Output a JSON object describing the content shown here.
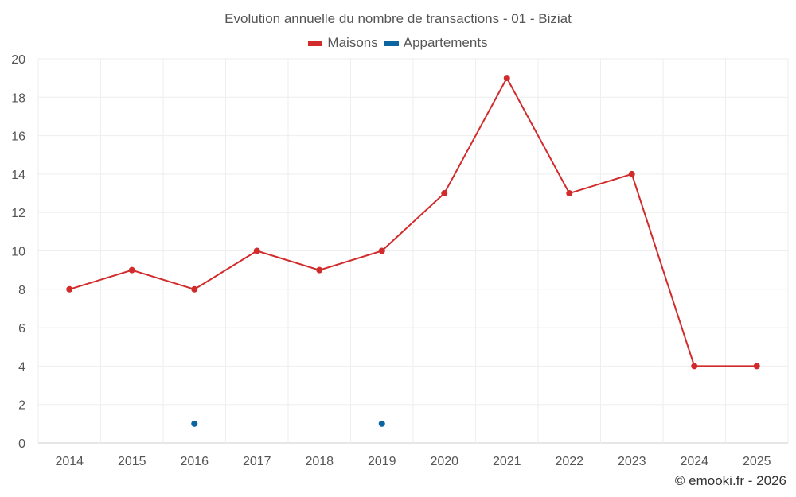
{
  "chart_data": {
    "type": "line",
    "title": "Evolution annuelle du nombre de transactions - 01 - Biziat",
    "categories": [
      "2014",
      "2015",
      "2016",
      "2017",
      "2018",
      "2019",
      "2020",
      "2021",
      "2022",
      "2023",
      "2024",
      "2025"
    ],
    "series": [
      {
        "name": "Maisons",
        "color": "#d22b2b",
        "values": [
          8,
          9,
          8,
          10,
          9,
          10,
          13,
          19,
          13,
          14,
          4,
          4
        ]
      },
      {
        "name": "Appartements",
        "color": "#0b65a0",
        "values": [
          null,
          null,
          1,
          null,
          null,
          1,
          null,
          null,
          null,
          null,
          null,
          null
        ]
      }
    ],
    "ylim": [
      0,
      20
    ],
    "yticks": [
      0,
      2,
      4,
      6,
      8,
      10,
      12,
      14,
      16,
      18,
      20
    ],
    "grid": true,
    "legend_position": "top-center"
  },
  "credit": "© emooki.fr - 2026"
}
